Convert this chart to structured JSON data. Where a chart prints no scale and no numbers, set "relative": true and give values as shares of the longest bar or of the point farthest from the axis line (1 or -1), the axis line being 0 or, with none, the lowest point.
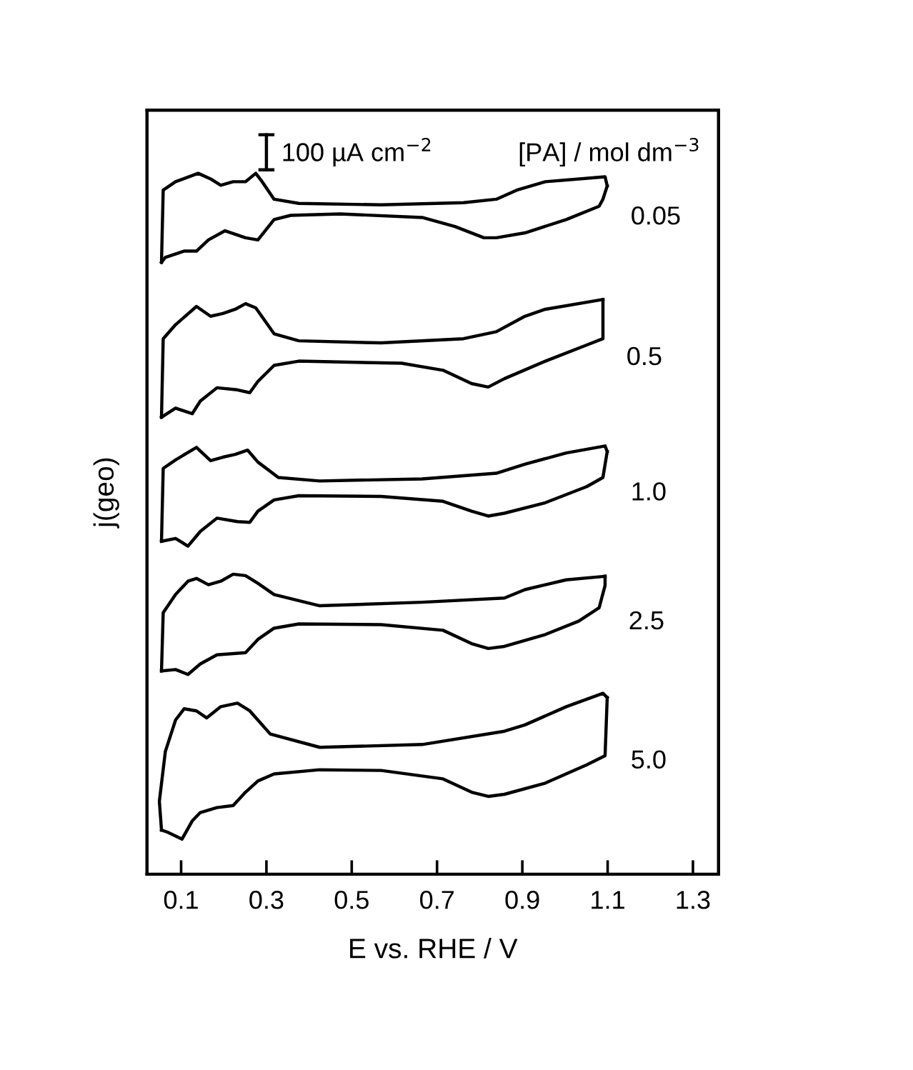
{
  "chart_data": {
    "type": "line",
    "relative": true,
    "xlabel": "E vs. RHE / V",
    "ylabel": "j(geo)",
    "xlim": [
      0.02,
      1.36
    ],
    "xticks": [
      0.1,
      0.3,
      0.5,
      0.7,
      0.9,
      1.1,
      1.3
    ],
    "tick_labels": "x",
    "grid": false,
    "marker": "none",
    "line_style": "solid",
    "annotations": [
      "100 µA cm$^{−2}$",
      "[PA] / mol dm$^{−3}$"
    ],
    "series": [
      {
        "name": "0.05",
        "color": "#000000",
        "x": [
          0.054,
          0.058,
          0.087,
          0.14,
          0.169,
          0.193,
          0.222,
          0.251,
          0.275,
          0.29,
          0.318,
          0.376,
          0.569,
          0.762,
          0.839,
          0.887,
          0.954,
          1.094,
          1.099
        ],
        "values": [
          0.873,
          0.976,
          0.988,
          1.0,
          0.992,
          0.983,
          0.988,
          0.988,
          1.0,
          0.988,
          0.963,
          0.957,
          0.955,
          0.958,
          0.963,
          0.976,
          0.988,
          0.995,
          0.982
        ]
      },
      {
        "color": "#000000",
        "x": [
          1.099,
          1.089,
          1.08,
          1.003,
          0.906,
          0.839,
          0.81,
          0.742,
          0.665,
          0.473,
          0.357,
          0.318,
          0.28,
          0.251,
          0.203,
          0.164,
          0.136,
          0.107,
          0.063,
          0.054
        ],
        "values": [
          0.982,
          0.963,
          0.953,
          0.934,
          0.915,
          0.908,
          0.908,
          0.924,
          0.937,
          0.942,
          0.94,
          0.934,
          0.905,
          0.908,
          0.918,
          0.905,
          0.889,
          0.889,
          0.88,
          0.873
        ]
      },
      {
        "name": "0.5",
        "color": "#000000",
        "x": [
          0.054,
          0.058,
          0.087,
          0.136,
          0.169,
          0.198,
          0.227,
          0.251,
          0.275,
          0.318,
          0.376,
          0.569,
          0.762,
          0.839,
          0.906,
          0.954,
          1.089
        ],
        "values": [
          0.652,
          0.764,
          0.784,
          0.81,
          0.796,
          0.8,
          0.806,
          0.814,
          0.808,
          0.771,
          0.761,
          0.758,
          0.764,
          0.774,
          0.796,
          0.806,
          0.82
        ]
      },
      {
        "color": "#000000",
        "x": [
          1.089,
          1.089,
          1.051,
          0.954,
          0.858,
          0.82,
          0.781,
          0.714,
          0.617,
          0.376,
          0.318,
          0.28,
          0.261,
          0.232,
          0.184,
          0.145,
          0.126,
          0.087,
          0.054
        ],
        "values": [
          0.82,
          0.764,
          0.755,
          0.732,
          0.707,
          0.695,
          0.7,
          0.719,
          0.729,
          0.732,
          0.726,
          0.703,
          0.687,
          0.691,
          0.694,
          0.675,
          0.657,
          0.665,
          0.652
        ]
      },
      {
        "name": "1.0",
        "color": "#000000",
        "x": [
          0.054,
          0.058,
          0.087,
          0.136,
          0.169,
          0.198,
          0.227,
          0.256,
          0.28,
          0.328,
          0.425,
          0.665,
          0.839,
          0.906,
          1.003,
          1.094,
          1.099
        ],
        "values": [
          0.475,
          0.579,
          0.591,
          0.609,
          0.59,
          0.595,
          0.599,
          0.605,
          0.588,
          0.566,
          0.561,
          0.564,
          0.572,
          0.585,
          0.601,
          0.611,
          0.603
        ]
      },
      {
        "color": "#000000",
        "x": [
          1.099,
          1.089,
          1.051,
          0.954,
          0.858,
          0.82,
          0.781,
          0.714,
          0.569,
          0.376,
          0.318,
          0.28,
          0.261,
          0.232,
          0.184,
          0.145,
          0.116,
          0.087,
          0.054
        ],
        "values": [
          0.603,
          0.566,
          0.553,
          0.53,
          0.515,
          0.511,
          0.518,
          0.532,
          0.539,
          0.54,
          0.534,
          0.518,
          0.502,
          0.503,
          0.508,
          0.489,
          0.468,
          0.479,
          0.475
        ]
      },
      {
        "name": "2.5",
        "color": "#000000",
        "x": [
          0.054,
          0.058,
          0.087,
          0.116,
          0.136,
          0.164,
          0.193,
          0.222,
          0.251,
          0.28,
          0.318,
          0.425,
          0.665,
          0.858,
          0.906,
          1.003,
          1.094
        ],
        "values": [
          0.29,
          0.373,
          0.399,
          0.418,
          0.422,
          0.413,
          0.418,
          0.428,
          0.426,
          0.415,
          0.399,
          0.383,
          0.388,
          0.394,
          0.406,
          0.42,
          0.425
        ]
      },
      {
        "color": "#000000",
        "x": [
          1.094,
          1.094,
          1.08,
          1.032,
          0.954,
          0.858,
          0.82,
          0.781,
          0.714,
          0.569,
          0.376,
          0.318,
          0.28,
          0.251,
          0.184,
          0.145,
          0.116,
          0.087,
          0.054
        ],
        "values": [
          0.425,
          0.412,
          0.38,
          0.361,
          0.342,
          0.325,
          0.322,
          0.329,
          0.348,
          0.356,
          0.357,
          0.351,
          0.335,
          0.316,
          0.313,
          0.3,
          0.285,
          0.292,
          0.29
        ]
      },
      {
        "name": "5.0",
        "color": "#000000",
        "x": [
          0.054,
          0.049,
          0.063,
          0.087,
          0.107,
          0.136,
          0.16,
          0.193,
          0.232,
          0.261,
          0.309,
          0.425,
          0.665,
          0.858,
          0.906,
          1.003,
          1.089,
          1.099
        ],
        "values": [
          0.063,
          0.104,
          0.175,
          0.22,
          0.236,
          0.233,
          0.223,
          0.239,
          0.244,
          0.233,
          0.2,
          0.181,
          0.185,
          0.204,
          0.213,
          0.239,
          0.258,
          0.252
        ]
      },
      {
        "color": "#000000",
        "x": [
          1.099,
          1.094,
          1.051,
          0.954,
          0.858,
          0.82,
          0.781,
          0.714,
          0.569,
          0.425,
          0.318,
          0.28,
          0.251,
          0.222,
          0.184,
          0.145,
          0.126,
          0.102,
          0.068,
          0.054
        ],
        "values": [
          0.252,
          0.169,
          0.156,
          0.13,
          0.114,
          0.111,
          0.117,
          0.136,
          0.148,
          0.149,
          0.143,
          0.133,
          0.117,
          0.098,
          0.095,
          0.088,
          0.076,
          0.05,
          0.06,
          0.063
        ]
      }
    ]
  }
}
